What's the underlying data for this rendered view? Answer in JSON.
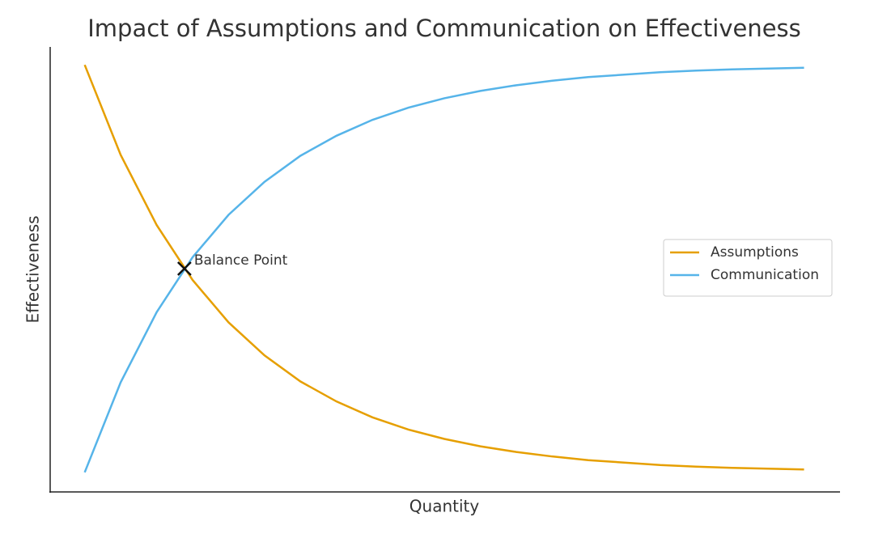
{
  "chart_data": {
    "type": "line",
    "title": "Impact of Assumptions and Communication on Effectiveness",
    "x_label": "Quantity",
    "y_label": "Effectiveness",
    "x": [
      0,
      0.5,
      1,
      1.5,
      2,
      2.5,
      3,
      3.5,
      4,
      4.5,
      5,
      5.5,
      6,
      6.5,
      7,
      7.5,
      8,
      8.5,
      9,
      9.5,
      10
    ],
    "series": [
      {
        "name": "Assumptions",
        "color": "#e69f00",
        "values": [
          1,
          0.779,
          0.607,
          0.472,
          0.368,
          0.287,
          0.223,
          0.174,
          0.135,
          0.105,
          0.082,
          0.064,
          0.05,
          0.039,
          0.03,
          0.024,
          0.018,
          0.014,
          0.011,
          0.009,
          0.007
        ]
      },
      {
        "name": "Communication",
        "color": "#56b4e9",
        "values": [
          0,
          0.221,
          0.393,
          0.528,
          0.632,
          0.713,
          0.777,
          0.826,
          0.865,
          0.895,
          0.918,
          0.936,
          0.95,
          0.961,
          0.97,
          0.976,
          0.982,
          0.986,
          0.989,
          0.991,
          0.993
        ]
      }
    ],
    "annotations": [
      {
        "text": "Balance Point",
        "x": 1.386,
        "y": 0.5
      }
    ],
    "xlim": [
      -0.48,
      10.5
    ],
    "ylim": [
      -0.048,
      1.044
    ],
    "grid": false,
    "legend": "right"
  }
}
